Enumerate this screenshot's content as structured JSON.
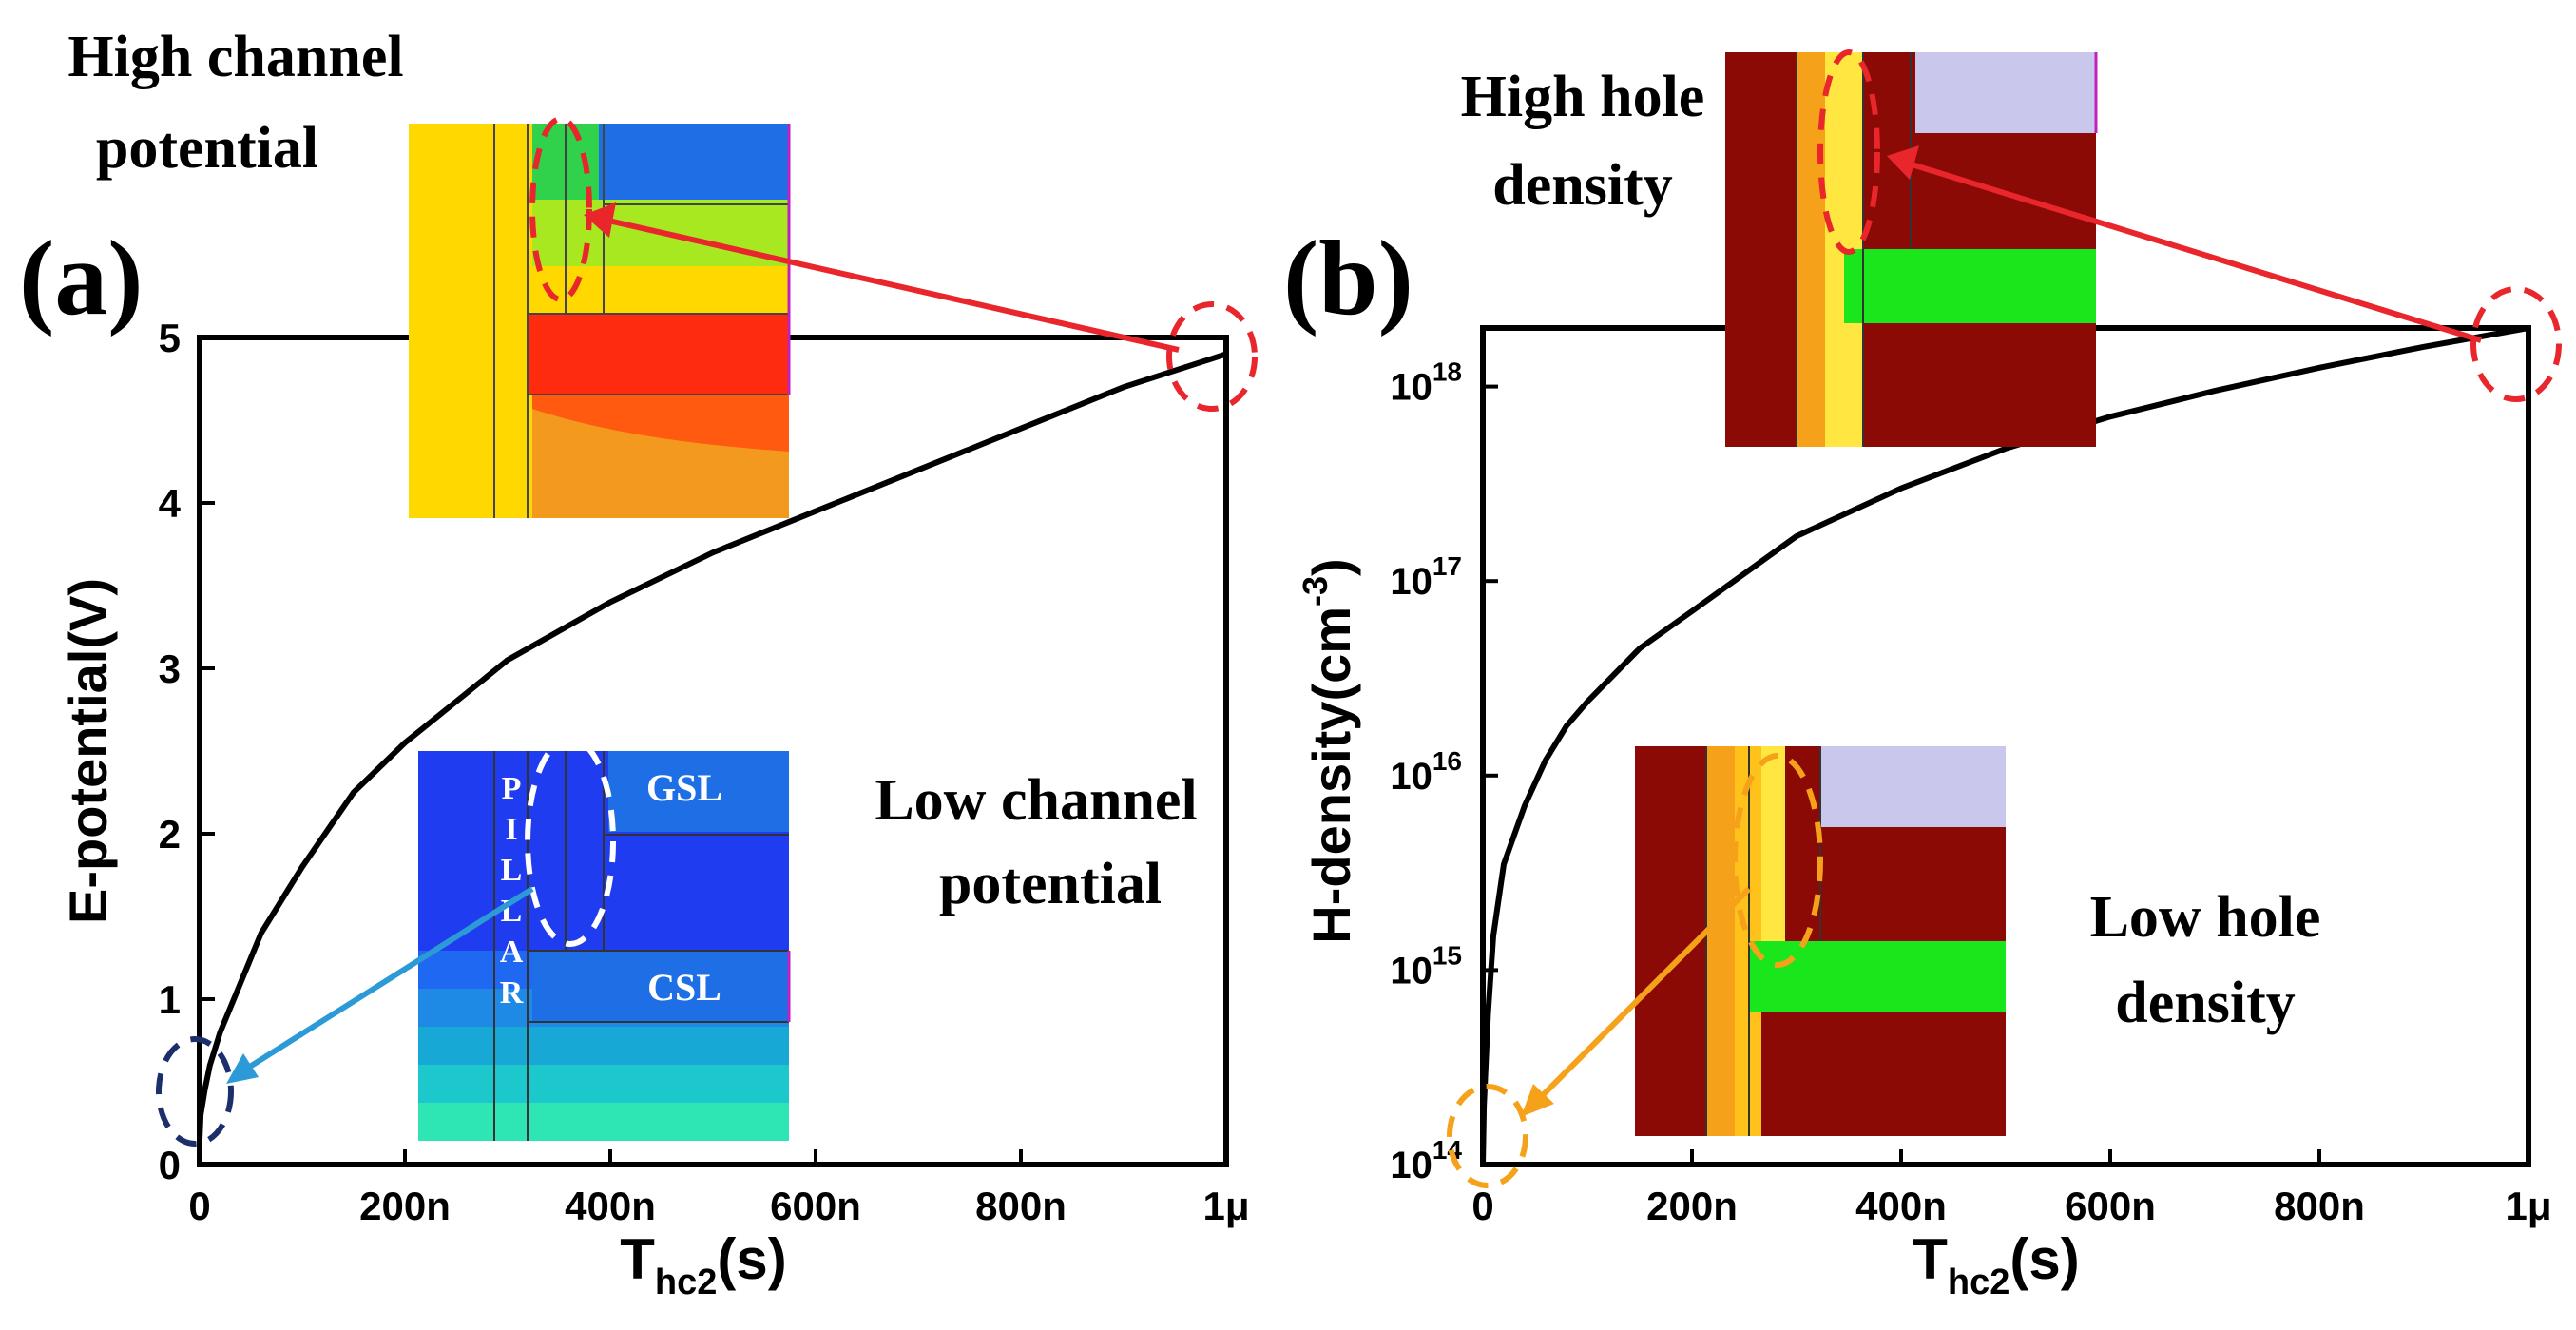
{
  "colors": {
    "axis": "#000000",
    "curve": "#000000",
    "red_annotation": "#e8262b",
    "blue_arrow": "#2c9ad6",
    "navy_circle": "#1c2f6b",
    "orange_annotation": "#f5a21a",
    "white_annotation": "#ffffff"
  },
  "chart_data": [
    {
      "type": "line",
      "panel_label": "(a)",
      "xlabel": "T",
      "xlabel_sub": "hc2",
      "xlabel_unit": "(s)",
      "ylabel": "E-potential(V)",
      "xlim": [
        0,
        1e-06
      ],
      "ylim": [
        0,
        5
      ],
      "x_ticks": [
        "0",
        "200n",
        "400n",
        "600n",
        "800n",
        "1μ"
      ],
      "y_ticks": [
        "0",
        "1",
        "2",
        "3",
        "4",
        "5"
      ],
      "series": [
        {
          "x": [
            0,
            1e-09,
            5e-09,
            1e-08,
            2e-08,
            4e-08,
            6e-08,
            8e-08,
            1e-07,
            1.5e-07,
            2e-07,
            3e-07,
            4e-07,
            5e-07,
            6e-07,
            7e-07,
            8e-07,
            9e-07,
            1e-06
          ],
          "values": [
            0.15,
            0.3,
            0.45,
            0.6,
            0.8,
            1.1,
            1.4,
            1.6,
            1.8,
            2.25,
            2.55,
            3.05,
            3.4,
            3.7,
            3.95,
            4.2,
            4.45,
            4.7,
            4.9
          ]
        }
      ],
      "annotations": [
        {
          "text": "High channel\npotential",
          "at": "top-left inset"
        },
        {
          "text": "Low channel\npotential",
          "at": "bottom-right inset"
        }
      ],
      "inset_labels": [
        "P",
        "I",
        "L",
        "L",
        "A",
        "R",
        "GSL",
        "CSL"
      ]
    },
    {
      "type": "line",
      "panel_label": "(b)",
      "xlabel": "T",
      "xlabel_sub": "hc2",
      "xlabel_unit": "(s)",
      "ylabel": "H-density(cm",
      "ylabel_sup": "-3",
      "ylabel_close": ")",
      "yscale": "log",
      "xlim": [
        0,
        1e-06
      ],
      "ylim": [
        100000000000000.0,
        2e+18
      ],
      "x_ticks": [
        "0",
        "200n",
        "400n",
        "600n",
        "800n",
        "1μ"
      ],
      "y_tick_base": "10",
      "y_tick_exps": [
        "14",
        "15",
        "16",
        "17",
        "18"
      ],
      "series": [
        {
          "x": [
            0,
            1e-09,
            5e-09,
            1e-08,
            2e-08,
            4e-08,
            6e-08,
            8e-08,
            1e-07,
            1.5e-07,
            2e-07,
            3e-07,
            4e-07,
            5e-07,
            6e-07,
            7e-07,
            8e-07,
            9e-07,
            1e-06
          ],
          "values": [
            100000000000000.0,
            200000000000000.0,
            600000000000000.0,
            1500000000000000.0,
            3500000000000000.0,
            7000000000000000.0,
            1.2e+16,
            1.8e+16,
            2.4e+16,
            4.5e+16,
            7e+16,
            1.7e+17,
            3e+17,
            4.8e+17,
            7e+17,
            9.5e+17,
            1.25e+18,
            1.6e+18,
            2e+18
          ]
        }
      ],
      "annotations": [
        {
          "text": "High hole\ndensity",
          "at": "top inset"
        },
        {
          "text": "Low hole\ndensity",
          "at": "bottom-right inset"
        }
      ]
    }
  ]
}
